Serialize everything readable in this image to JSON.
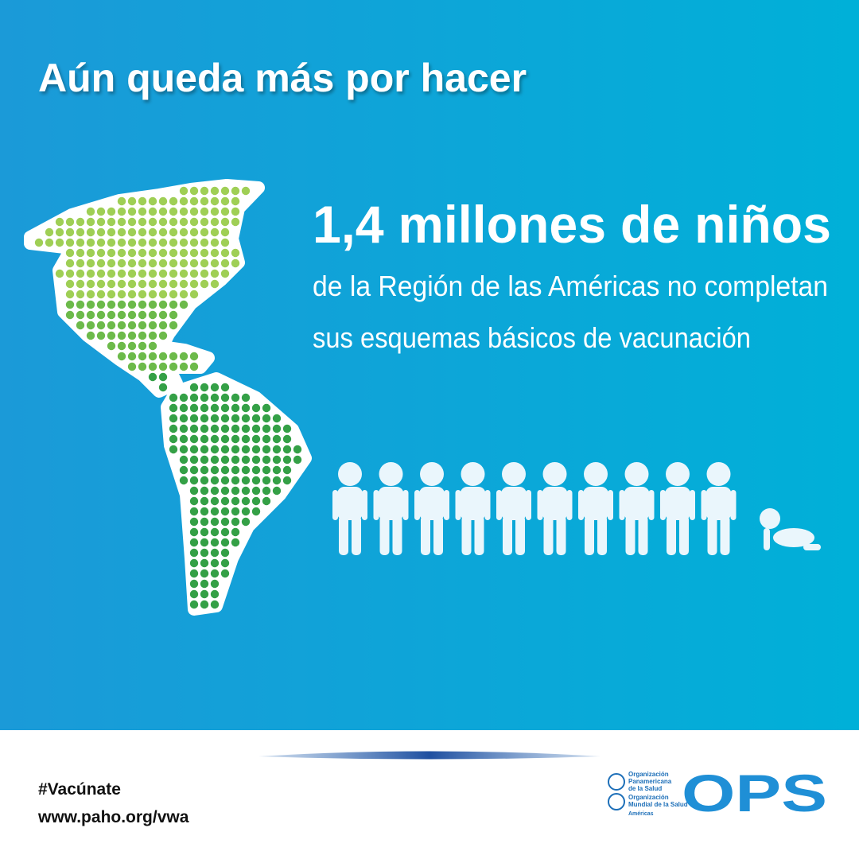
{
  "header": {
    "title": "Aún queda más por hacer"
  },
  "message": {
    "headline": "1,4 millones de niños",
    "lines": [
      "de la Región de las Américas no completan",
      "sus esquemas básicos de vacunación"
    ]
  },
  "footer": {
    "hashtag": "#Vacúnate",
    "url": "www.paho.org/vwa",
    "logo": {
      "org1": [
        "Organización",
        "Panamericana",
        "de la Salud"
      ],
      "org2": [
        "Organización",
        "Mundial de la Salud"
      ],
      "region": "Américas",
      "acronym": "OPS"
    }
  }
}
